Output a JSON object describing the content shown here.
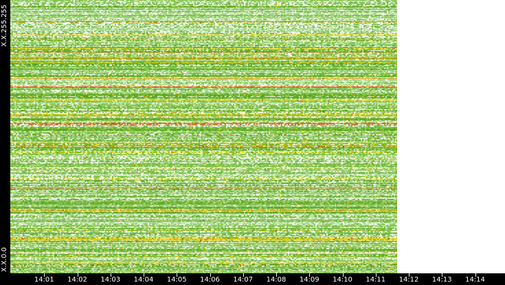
{
  "chart_data": {
    "type": "heatmap",
    "y_labels": {
      "top": "X.X.255.255",
      "bottom": "X.X.0.0"
    },
    "x_ticks": [
      "14:01",
      "14:02",
      "14:03",
      "14:04",
      "14:05",
      "14:06",
      "14:07",
      "14:08",
      "14:09",
      "14:10",
      "14:11",
      "14:12",
      "14:13",
      "14:14"
    ],
    "x_range": [
      "14:00",
      "14:14"
    ],
    "data_end": "14:11:40",
    "color_scale": [
      "#ffffff",
      "#a8d88a",
      "#7cc242",
      "#5aa61e",
      "#f5d800",
      "#ff9900",
      "#ff3300",
      "#cc0000"
    ],
    "background": "#000000"
  }
}
